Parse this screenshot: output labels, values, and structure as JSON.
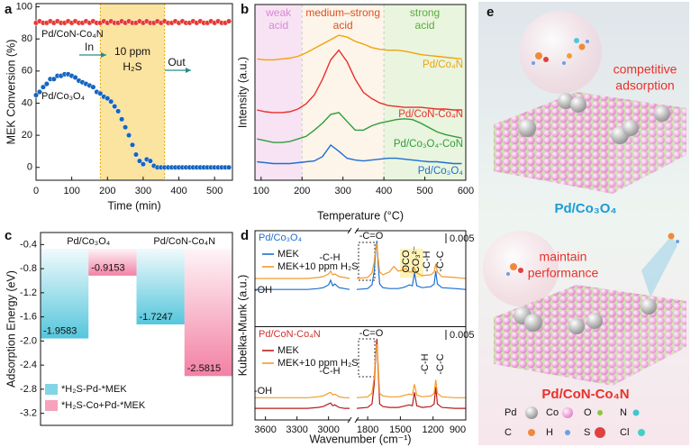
{
  "chart_data": [
    {
      "panel": "a",
      "type": "scatter",
      "xlabel": "Time (min)",
      "ylabel": "MEK Conversion (%)",
      "xlim": [
        0,
        550
      ],
      "ylim": [
        -8,
        102
      ],
      "xticks": [
        0,
        100,
        200,
        300,
        400,
        500
      ],
      "yticks": [
        0,
        20,
        40,
        60,
        80,
        100
      ],
      "shaded_range": [
        180,
        360
      ],
      "annotations": [
        "In",
        "10 ppm",
        "H₂S",
        "Out"
      ],
      "x": [
        0,
        10,
        20,
        30,
        40,
        50,
        60,
        70,
        80,
        90,
        100,
        110,
        120,
        130,
        140,
        150,
        160,
        170,
        180,
        190,
        200,
        210,
        220,
        230,
        240,
        250,
        260,
        270,
        280,
        290,
        300,
        310,
        320,
        330,
        340,
        350,
        360,
        370,
        380,
        390,
        400,
        410,
        420,
        430,
        440,
        450,
        460,
        470,
        480,
        490,
        500,
        510,
        520,
        530,
        540
      ],
      "series": [
        {
          "name": "Pd/CoN-Co₄N",
          "color": "#e53935",
          "values": [
            90,
            91,
            90,
            90,
            91,
            90,
            91,
            90,
            90,
            91,
            90,
            91,
            90,
            90,
            91,
            90,
            91,
            90,
            90,
            91,
            90,
            91,
            90,
            90,
            91,
            90,
            91,
            90,
            90,
            91,
            90,
            91,
            90,
            90,
            91,
            90,
            91,
            90,
            90,
            91,
            90,
            91,
            90,
            90,
            91,
            90,
            91,
            90,
            90,
            91,
            90,
            91,
            90,
            90,
            91
          ]
        },
        {
          "name": "Pd/Co₃O₄",
          "color": "#1565c0",
          "values": [
            45,
            47,
            50,
            52,
            55,
            55,
            57,
            57,
            58,
            58,
            57,
            56,
            54,
            53,
            52,
            51,
            50,
            47,
            46,
            44,
            43,
            41,
            38,
            35,
            30,
            25,
            20,
            14,
            8,
            4,
            2,
            5,
            4,
            1,
            0,
            0,
            0,
            0,
            0,
            0,
            0,
            0,
            0,
            0,
            0,
            0,
            0,
            0,
            0,
            0,
            0,
            0,
            0,
            0,
            0
          ]
        }
      ]
    },
    {
      "panel": "b",
      "type": "line",
      "xlabel": "Temperature (°C)",
      "ylabel": "Intensity (a.u.)",
      "xlim": [
        85,
        600
      ],
      "ylim": [
        0,
        10
      ],
      "xticks": [
        100,
        200,
        300,
        400,
        500,
        600
      ],
      "regions": [
        {
          "lines": [
            "weak",
            "acid"
          ],
          "from": 85,
          "to": 200,
          "fill": "#f8e3f4",
          "color": "#d58ad6"
        },
        {
          "lines": [
            "medium–strong",
            "acid"
          ],
          "from": 200,
          "to": 400,
          "fill": "#fdf4ea",
          "color": "#d9531e"
        },
        {
          "lines": [
            "strong",
            "acid"
          ],
          "from": 400,
          "to": 600,
          "fill": "#e9f5de",
          "color": "#5aac3c"
        }
      ],
      "x": [
        90,
        110,
        130,
        150,
        170,
        190,
        210,
        230,
        250,
        270,
        290,
        310,
        330,
        350,
        370,
        390,
        410,
        430,
        450,
        470,
        490,
        510,
        530,
        550,
        570,
        590
      ],
      "series": [
        {
          "name": "Pd/Co₄N",
          "color": "#f0a30a",
          "values": [
            6.9,
            6.85,
            6.85,
            6.9,
            6.95,
            7.05,
            7.25,
            7.5,
            7.75,
            8.0,
            8.25,
            8.15,
            7.9,
            7.75,
            7.55,
            7.45,
            7.4,
            7.4,
            7.35,
            7.25,
            7.15,
            7.1,
            7.05,
            7.0,
            6.95,
            6.9
          ]
        },
        {
          "name": "Pd/CoN-Co₄N",
          "color": "#e8312b",
          "values": [
            4.0,
            3.9,
            3.85,
            3.85,
            3.9,
            4.05,
            4.35,
            4.85,
            5.75,
            6.85,
            7.4,
            6.75,
            5.75,
            5.0,
            4.65,
            4.4,
            4.25,
            4.2,
            4.15,
            4.15,
            4.15,
            4.1,
            4.05,
            4.05,
            4.0,
            4.0
          ]
        },
        {
          "name": "Pd/Co₃O₄-CoN",
          "color": "#2e9e3a",
          "values": [
            2.35,
            2.25,
            2.15,
            2.15,
            2.2,
            2.35,
            2.5,
            2.85,
            3.25,
            3.75,
            3.85,
            3.35,
            2.85,
            2.85,
            3.1,
            3.25,
            3.35,
            3.45,
            3.5,
            3.45,
            3.25,
            3.0,
            2.75,
            2.6,
            2.5,
            2.4
          ]
        },
        {
          "name": "Pd/Co₃O₄",
          "color": "#1f6fd1",
          "values": [
            1.05,
            1.0,
            0.95,
            0.95,
            0.95,
            1.0,
            1.05,
            1.1,
            1.35,
            2.0,
            1.65,
            1.25,
            1.15,
            1.1,
            1.15,
            1.2,
            1.25,
            1.25,
            1.2,
            1.15,
            1.1,
            1.05,
            1.05,
            1.0,
            0.95,
            0.95
          ]
        }
      ]
    },
    {
      "panel": "c",
      "type": "bar",
      "ylabel": "Adsorption Energy (eV)",
      "ylim": [
        -3.4,
        -0.2
      ],
      "yticks": [
        -0.4,
        -0.8,
        -1.2,
        -1.6,
        {
          "value": -2,
          "label": "-2.0"
        },
        -2.4,
        -2.8,
        -3.2
      ],
      "categories": [
        "Pd/Co₃O₄",
        "Pd/CoN-Co₄N"
      ],
      "series": [
        {
          "name": "*H₂S-Pd-*MEK",
          "color": "#4cc3da",
          "values": [
            -1.9583,
            -1.7247
          ]
        },
        {
          "name": "*H₂S-Co+Pd-*MEK",
          "color": "#f27aa0",
          "values": [
            -0.9153,
            -2.5815
          ]
        }
      ]
    },
    {
      "panel": "d",
      "type": "spectra",
      "xlabel": "Wavenumber (cm⁻¹)",
      "ylabel": "Kubelka-Munk (a.u.)",
      "xlim": [
        3700,
        900
      ],
      "xbreak": [
        2800,
        1900
      ],
      "xticks": [
        3600,
        3300,
        3000,
        1800,
        1500,
        1200,
        900
      ],
      "x": [
        3700,
        3600,
        3500,
        3400,
        3300,
        3200,
        3100,
        3050,
        3000,
        2980,
        2960,
        2940,
        2900,
        2850,
        2800,
        null,
        1900,
        1800,
        1760,
        1740,
        1725,
        1715,
        1705,
        1690,
        1660,
        1600,
        1560,
        1520,
        1480,
        1450,
        1420,
        1390,
        1370,
        1350,
        1300,
        1220,
        1190,
        1175,
        1160,
        1120,
        1000,
        900
      ],
      "subplots": [
        {
          "title": "Pd/Co₃O₄",
          "title_color": "#1f6fd1",
          "ylim": [
            0,
            10
          ],
          "scale_label": "0.005",
          "peak_labels": [
            "-OH",
            "-C-H",
            "-C=O",
            "OCO",
            "CO₃²⁻",
            "-C-H",
            "-C-C"
          ],
          "series": [
            {
              "name": "MEK",
              "color": "#1f6fd1",
              "values": [
                4,
                4,
                4,
                4,
                4,
                4,
                4.1,
                4.2,
                4.5,
                5.0,
                4.4,
                4.6,
                4.2,
                4.1,
                4,
                null,
                4,
                4.1,
                4.5,
                6,
                8.5,
                9.3,
                7,
                4.6,
                4.2,
                4.1,
                4.1,
                4.1,
                4.2,
                4.3,
                4.5,
                4.4,
                5.8,
                4.4,
                4.2,
                4.3,
                4.6,
                6.0,
                4.6,
                4.2,
                4.1,
                4
              ]
            },
            {
              "name": "MEK+10 ppm H₂S",
              "color": "#f39a2b",
              "values": [
                5.2,
                5.2,
                5.2,
                5.2,
                5.2,
                5.2,
                5.3,
                5.4,
                5.7,
                6.0,
                5.6,
                5.7,
                5.4,
                5.3,
                5.2,
                null,
                5.2,
                5.3,
                5.8,
                7,
                8.6,
                9.0,
                7.5,
                5.9,
                5.6,
                5.9,
                6.5,
                6.0,
                6.1,
                6.3,
                5.9,
                5.9,
                6.3,
                5.8,
                5.5,
                5.6,
                5.9,
                6.8,
                5.9,
                5.4,
                5.3,
                5.2
              ]
            }
          ]
        },
        {
          "title": "Pd/CoN-Co₄N",
          "title_color": "#d32f2f",
          "ylim": [
            0,
            10
          ],
          "scale_label": "0.005",
          "peak_labels": [
            "-OH",
            "-C-H",
            "-C=O",
            "-C-H",
            "-C-C"
          ],
          "series": [
            {
              "name": "MEK",
              "color": "#b71c1c",
              "values": [
                1.3,
                1.3,
                1.3,
                1.3,
                1.3,
                1.3,
                1.4,
                1.5,
                1.8,
                1.9,
                1.6,
                1.7,
                1.4,
                1.3,
                1.3,
                null,
                1.3,
                1.4,
                1.8,
                4,
                7.5,
                9.1,
                6,
                1.8,
                1.5,
                1.4,
                1.4,
                1.4,
                1.5,
                1.6,
                1.7,
                1.6,
                3.1,
                1.6,
                1.4,
                1.5,
                1.8,
                3.7,
                1.8,
                1.4,
                1.3,
                1.3
              ]
            },
            {
              "name": "MEK+10 ppm H₂S",
              "color": "#f39a2b",
              "values": [
                2.5,
                2.5,
                2.5,
                2.5,
                2.5,
                2.5,
                2.6,
                2.7,
                3.0,
                3.1,
                2.8,
                2.9,
                2.6,
                2.5,
                2.5,
                null,
                2.5,
                2.6,
                3.0,
                4.8,
                7.8,
                8.5,
                6.5,
                3.0,
                2.7,
                2.6,
                2.6,
                2.6,
                2.7,
                2.8,
                2.9,
                2.8,
                4.0,
                2.8,
                2.6,
                2.7,
                3.0,
                4.5,
                3.0,
                2.6,
                2.5,
                2.5
              ]
            }
          ]
        }
      ]
    }
  ],
  "illustration": {
    "panel": "e",
    "top": {
      "label": [
        "competitive",
        "adsorption"
      ],
      "caption": "Pd/Co₃O₄"
    },
    "bottom": {
      "label": [
        "maintain",
        "performance"
      ],
      "caption": "Pd/CoN-Co₄N"
    },
    "legend": [
      "Pd",
      "Co",
      "O",
      "N",
      "C",
      "H",
      "S",
      "Cl"
    ]
  }
}
